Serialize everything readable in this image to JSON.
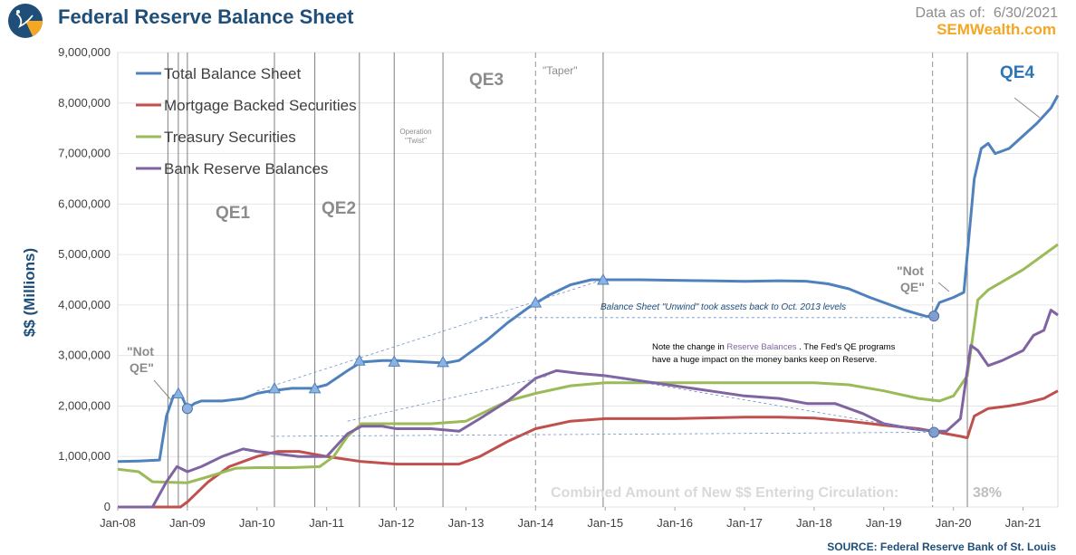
{
  "header": {
    "title": "Federal Reserve Balance Sheet",
    "data_as_of_label": "Data as of:",
    "data_as_of_date": "6/30/2021",
    "brand": "SEMWealth.com",
    "source": "SOURCE:  Federal Reserve Bank of St. Louis"
  },
  "colors": {
    "total": "#4f81bd",
    "mbs": "#c0504d",
    "treasury": "#9bbb59",
    "reserves": "#8064a2",
    "annotation_grey": "#8c8c8c",
    "title_blue": "#1f4e79",
    "qe4_blue": "#2e75b6",
    "brand_orange": "#f5a623"
  },
  "chart_data": {
    "type": "line",
    "title": "Federal Reserve Balance Sheet",
    "ylabel": "$$ (Millions)",
    "xlabel": "",
    "ylim": [
      0,
      9000000
    ],
    "yticks": [
      0,
      1000000,
      2000000,
      3000000,
      4000000,
      5000000,
      6000000,
      7000000,
      8000000,
      9000000
    ],
    "ytick_labels": [
      "0",
      "1,000,000",
      "2,000,000",
      "3,000,000",
      "4,000,000",
      "5,000,000",
      "6,000,000",
      "7,000,000",
      "8,000,000",
      "9,000,000"
    ],
    "xlim": [
      2008.0,
      2021.5
    ],
    "xticks": [
      2008,
      2009,
      2010,
      2011,
      2012,
      2013,
      2014,
      2015,
      2016,
      2017,
      2018,
      2019,
      2020,
      2021
    ],
    "xtick_labels": [
      "Jan-08",
      "Jan-09",
      "Jan-10",
      "Jan-11",
      "Jan-12",
      "Jan-13",
      "Jan-14",
      "Jan-15",
      "Jan-16",
      "Jan-17",
      "Jan-18",
      "Jan-19",
      "Jan-20",
      "Jan-21"
    ],
    "legend_position": "top-left",
    "series": [
      {
        "name": "Total Balance Sheet",
        "key": "total",
        "x": [
          2008.0,
          2008.3,
          2008.6,
          2008.7,
          2008.8,
          2008.9,
          2009.0,
          2009.1,
          2009.2,
          2009.5,
          2009.8,
          2010.0,
          2010.2,
          2010.5,
          2010.8,
          2011.0,
          2011.3,
          2011.5,
          2011.8,
          2012.0,
          2012.3,
          2012.7,
          2012.9,
          2013.0,
          2013.3,
          2013.6,
          2013.9,
          2014.2,
          2014.5,
          2014.8,
          2015.0,
          2015.5,
          2016.0,
          2016.5,
          2017.0,
          2017.5,
          2017.9,
          2018.2,
          2018.5,
          2018.8,
          2019.0,
          2019.3,
          2019.6,
          2019.7,
          2019.8,
          2020.0,
          2020.15,
          2020.2,
          2020.3,
          2020.4,
          2020.5,
          2020.6,
          2020.8,
          2021.0,
          2021.2,
          2021.4,
          2021.5
        ],
        "values": [
          900000,
          910000,
          930000,
          1800000,
          2200000,
          2250000,
          1950000,
          2050000,
          2100000,
          2100000,
          2150000,
          2250000,
          2300000,
          2350000,
          2350000,
          2420000,
          2700000,
          2870000,
          2900000,
          2900000,
          2880000,
          2850000,
          2900000,
          3000000,
          3300000,
          3650000,
          3950000,
          4200000,
          4400000,
          4500000,
          4500000,
          4500000,
          4490000,
          4480000,
          4470000,
          4480000,
          4470000,
          4420000,
          4320000,
          4150000,
          4050000,
          3900000,
          3780000,
          3770000,
          4050000,
          4150000,
          4250000,
          5000000,
          6500000,
          7100000,
          7200000,
          7000000,
          7100000,
          7350000,
          7600000,
          7900000,
          8150000
        ],
        "annotations": []
      },
      {
        "name": "Mortgage Backed Securities",
        "key": "mbs",
        "x": [
          2008.0,
          2008.9,
          2009.0,
          2009.3,
          2009.6,
          2010.0,
          2010.3,
          2010.6,
          2011.0,
          2011.5,
          2012.0,
          2012.5,
          2012.9,
          2013.2,
          2013.6,
          2014.0,
          2014.5,
          2015.0,
          2016.0,
          2017.0,
          2017.5,
          2018.0,
          2018.5,
          2019.0,
          2019.5,
          2019.9,
          2020.1,
          2020.2,
          2020.3,
          2020.5,
          2020.8,
          2021.0,
          2021.3,
          2021.5
        ],
        "values": [
          0,
          0,
          100000,
          500000,
          800000,
          1000000,
          1100000,
          1100000,
          1000000,
          900000,
          850000,
          850000,
          850000,
          1000000,
          1300000,
          1550000,
          1700000,
          1750000,
          1750000,
          1780000,
          1780000,
          1760000,
          1700000,
          1620000,
          1550000,
          1450000,
          1400000,
          1370000,
          1800000,
          1950000,
          2000000,
          2050000,
          2150000,
          2300000
        ]
      },
      {
        "name": "Treasury Securities",
        "key": "treasury",
        "x": [
          2008.0,
          2008.3,
          2008.5,
          2009.0,
          2009.3,
          2009.7,
          2010.0,
          2010.5,
          2010.9,
          2011.1,
          2011.3,
          2011.5,
          2012.0,
          2012.5,
          2013.0,
          2013.3,
          2013.6,
          2014.0,
          2014.5,
          2015.0,
          2016.0,
          2017.0,
          2018.0,
          2018.5,
          2019.0,
          2019.5,
          2019.8,
          2020.0,
          2020.1,
          2020.2,
          2020.35,
          2020.5,
          2021.0,
          2021.5
        ],
        "values": [
          750000,
          700000,
          500000,
          480000,
          600000,
          770000,
          780000,
          780000,
          800000,
          1000000,
          1400000,
          1650000,
          1650000,
          1650000,
          1700000,
          1900000,
          2100000,
          2250000,
          2400000,
          2460000,
          2460000,
          2460000,
          2460000,
          2420000,
          2300000,
          2150000,
          2100000,
          2200000,
          2400000,
          2600000,
          4100000,
          4300000,
          4700000,
          5200000
        ]
      },
      {
        "name": "Bank Reserve Balances",
        "key": "reserves",
        "x": [
          2008.0,
          2008.5,
          2008.7,
          2008.85,
          2009.0,
          2009.2,
          2009.5,
          2009.8,
          2010.0,
          2010.3,
          2010.6,
          2011.0,
          2011.3,
          2011.5,
          2011.8,
          2012.0,
          2012.5,
          2012.9,
          2013.2,
          2013.6,
          2014.0,
          2014.3,
          2014.6,
          2015.0,
          2015.5,
          2016.0,
          2016.5,
          2017.0,
          2017.5,
          2017.9,
          2018.3,
          2018.7,
          2019.0,
          2019.4,
          2019.7,
          2019.9,
          2020.1,
          2020.25,
          2020.35,
          2020.5,
          2020.7,
          2021.0,
          2021.15,
          2021.3,
          2021.4,
          2021.5
        ],
        "values": [
          0,
          0,
          500000,
          800000,
          700000,
          800000,
          1000000,
          1150000,
          1100000,
          1050000,
          1000000,
          1000000,
          1450000,
          1600000,
          1600000,
          1550000,
          1550000,
          1500000,
          1750000,
          2100000,
          2550000,
          2700000,
          2650000,
          2600000,
          2500000,
          2400000,
          2300000,
          2200000,
          2150000,
          2050000,
          2050000,
          1850000,
          1650000,
          1550000,
          1500000,
          1500000,
          1750000,
          3200000,
          3100000,
          2800000,
          2900000,
          3100000,
          3400000,
          3500000,
          3900000,
          3800000
        ]
      }
    ],
    "event_lines": [
      {
        "x": 2008.72,
        "label": ""
      },
      {
        "x": 2008.87,
        "label": ""
      },
      {
        "x": 2009.0,
        "label": ""
      },
      {
        "x": 2010.25,
        "label": ""
      },
      {
        "x": 2010.83,
        "label": ""
      },
      {
        "x": 2011.47,
        "label": ""
      },
      {
        "x": 2011.97,
        "label": ""
      },
      {
        "x": 2012.67,
        "label": ""
      },
      {
        "x": 2014.97,
        "label": ""
      },
      {
        "x": 2020.2,
        "label": ""
      }
    ],
    "dashed_lines": [
      {
        "x": 2014.0
      },
      {
        "x": 2019.7
      }
    ],
    "annotations": {
      "qe1": "QE1",
      "qe2": "QE2",
      "qe3": "QE3",
      "qe4": "QE4",
      "taper": "\"Taper\"",
      "twist_line1": "Operation",
      "twist_line2": "\"Twist\"",
      "not_qe_left_line1": "\"Not",
      "not_qe_left_line2": "QE\"",
      "not_qe_right_line1": "\"Not",
      "not_qe_right_line2": "QE\"",
      "unwind_note": "Balance Sheet \"Unwind\" took assets back to Oct. 2013 levels",
      "reserve_note_prefix": "Note the change in ",
      "reserve_note_highlight": "Reserve Balances",
      "reserve_note_suffix": " . The Fed's QE programs",
      "reserve_note_line2": "have a huge impact on the money banks keep on Reserve.",
      "combined_label": "Combined  Amount  of  New  $$  Entering  Circulation:",
      "combined_value": "38%"
    }
  }
}
